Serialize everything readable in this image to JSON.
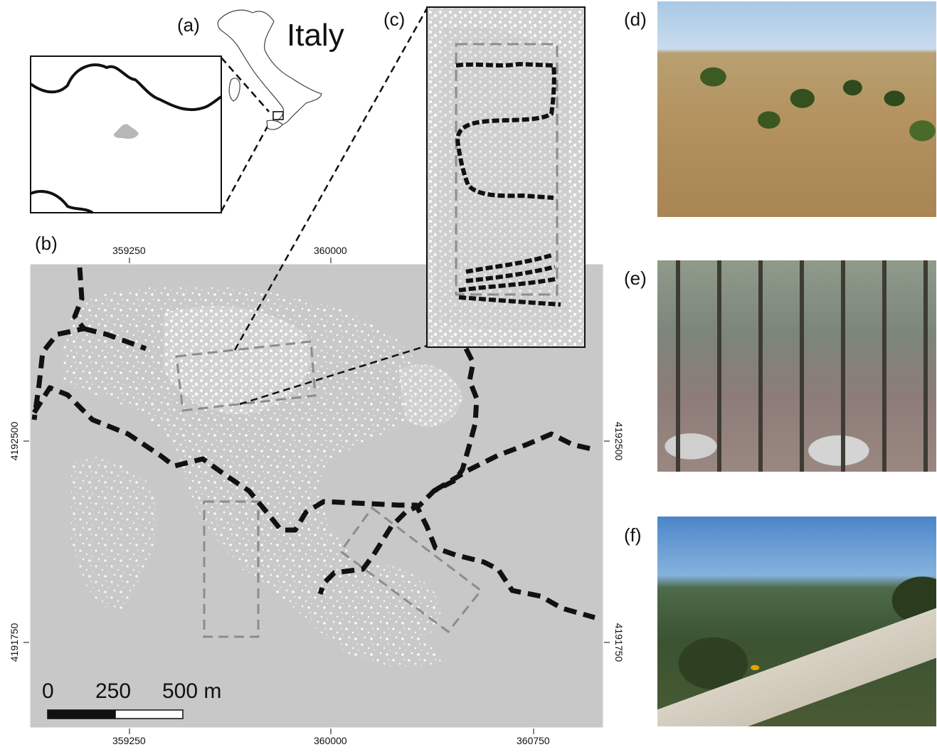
{
  "panels": {
    "a": "(a)",
    "b": "(b)",
    "c": "(c)",
    "d": "(d)",
    "e": "(e)",
    "f": "(f)"
  },
  "country_label": "Italy",
  "axes": {
    "x_ticks": [
      "359250",
      "360000",
      "360750"
    ],
    "y_ticks": [
      "4192500",
      "4191750"
    ]
  },
  "scale_bar": {
    "labels": [
      "0",
      "250",
      "500 m"
    ]
  },
  "colors": {
    "landscape_gray": "#c8c8c8",
    "open_white": "#ffffff",
    "path_black": "#111111",
    "transect_gray": "#8c8c8c"
  },
  "photos": {
    "d": "grassland-shrub-photo",
    "e": "forest-photo",
    "f": "road-photo"
  }
}
